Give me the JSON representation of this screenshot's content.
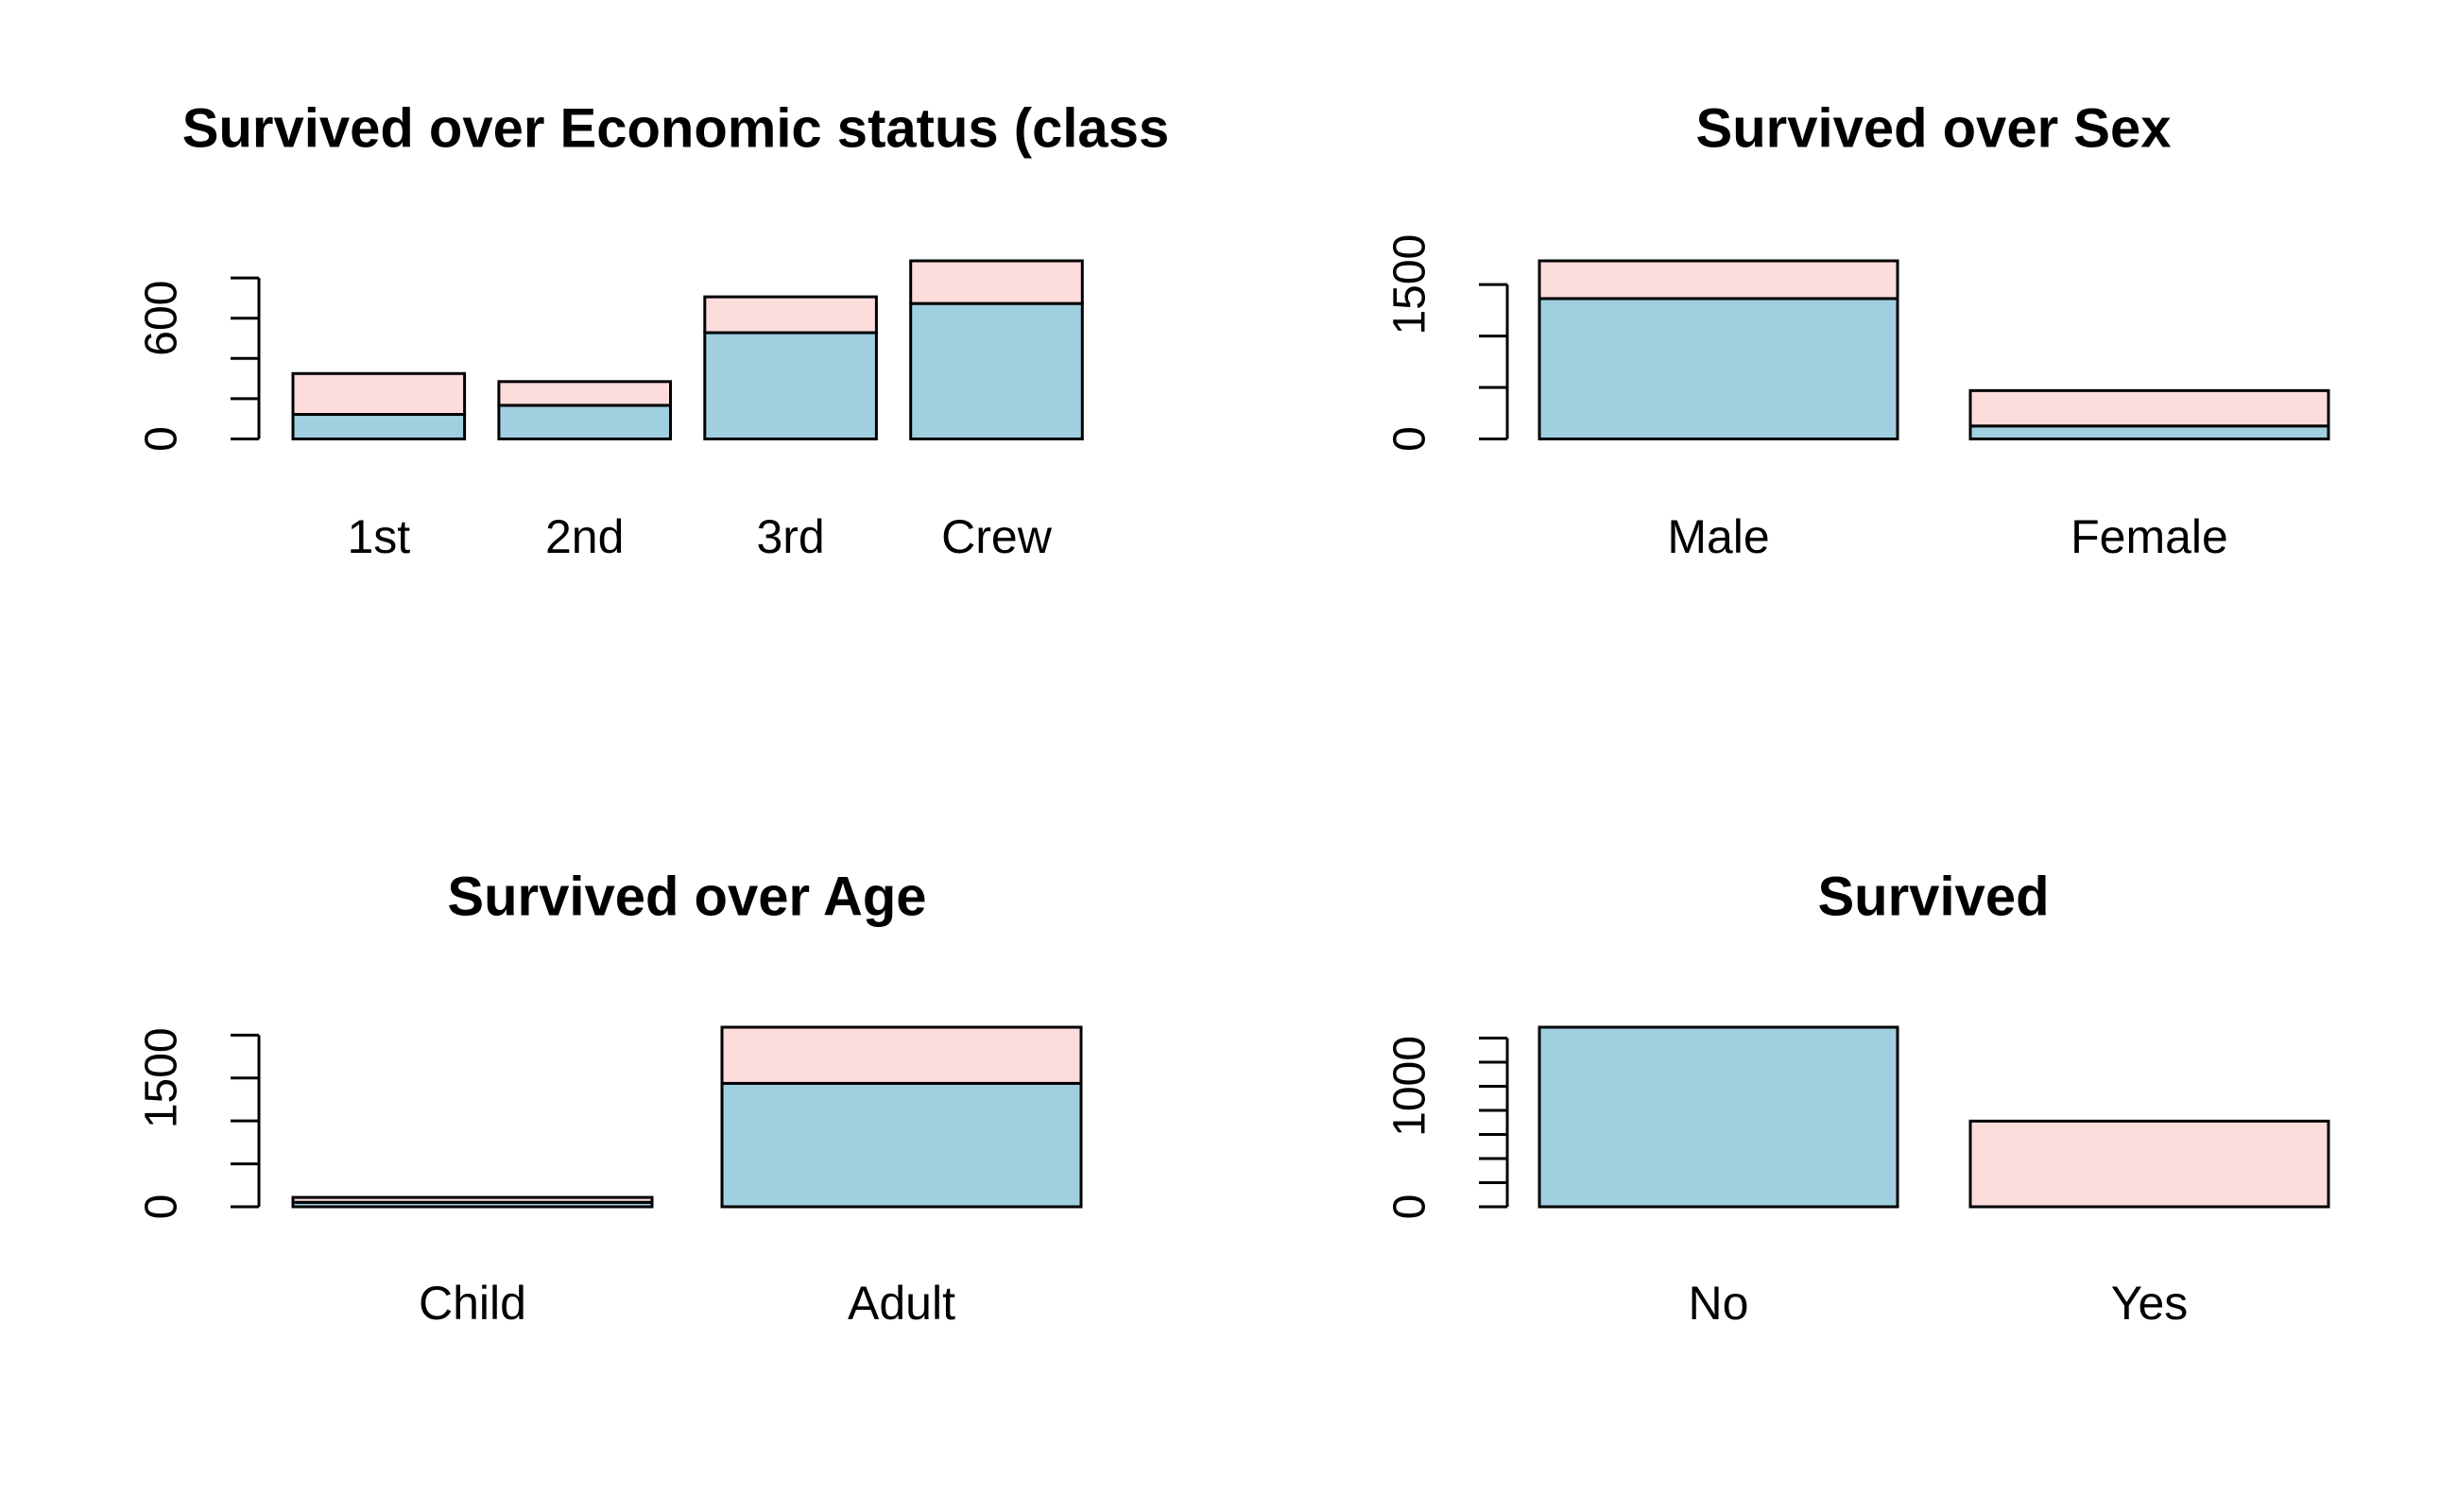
{
  "chart_data": [
    {
      "type": "bar",
      "title": "Survived over Economic status (class",
      "categories": [
        "1st",
        "2nd",
        "3rd",
        "Crew"
      ],
      "series": [
        {
          "color": "#a0cfe0",
          "values": [
            122,
            167,
            528,
            673
          ]
        },
        {
          "color": "#fddcdc",
          "values": [
            203,
            118,
            178,
            212
          ]
        }
      ],
      "ylim": [
        0,
        885
      ],
      "yticks": [
        0,
        600
      ],
      "yminor_ticks": [
        200,
        400,
        800
      ]
    },
    {
      "type": "bar",
      "title": "Survived over Sex",
      "categories": [
        "Male",
        "Female"
      ],
      "series": [
        {
          "color": "#a0cfe0",
          "values": [
            1364,
            126
          ]
        },
        {
          "color": "#fddcdc",
          "values": [
            367,
            344
          ]
        }
      ],
      "ylim": [
        0,
        1731
      ],
      "yticks": [
        0,
        1500
      ],
      "yminor_ticks": [
        500,
        1000
      ]
    },
    {
      "type": "bar",
      "title": "Survived over Age",
      "categories": [
        "Child",
        "Adult"
      ],
      "series": [
        {
          "color": "#a0cfe0",
          "values": [
            52,
            1438
          ]
        },
        {
          "color": "#fddcdc",
          "values": [
            57,
            654
          ]
        }
      ],
      "ylim": [
        0,
        2092
      ],
      "yticks": [
        0,
        1500
      ],
      "yminor_ticks": [
        500,
        1000,
        2000
      ]
    },
    {
      "type": "bar",
      "title": "Survived",
      "categories": [
        "No",
        "Yes"
      ],
      "values": [
        1490,
        711
      ],
      "colors": [
        "#a0cfe0",
        "#fddcdc"
      ],
      "ylim": [
        0,
        1490
      ],
      "yticks": [
        0,
        1000
      ],
      "yminor_ticks": [
        200,
        400,
        600,
        800,
        1200,
        1400
      ]
    }
  ]
}
